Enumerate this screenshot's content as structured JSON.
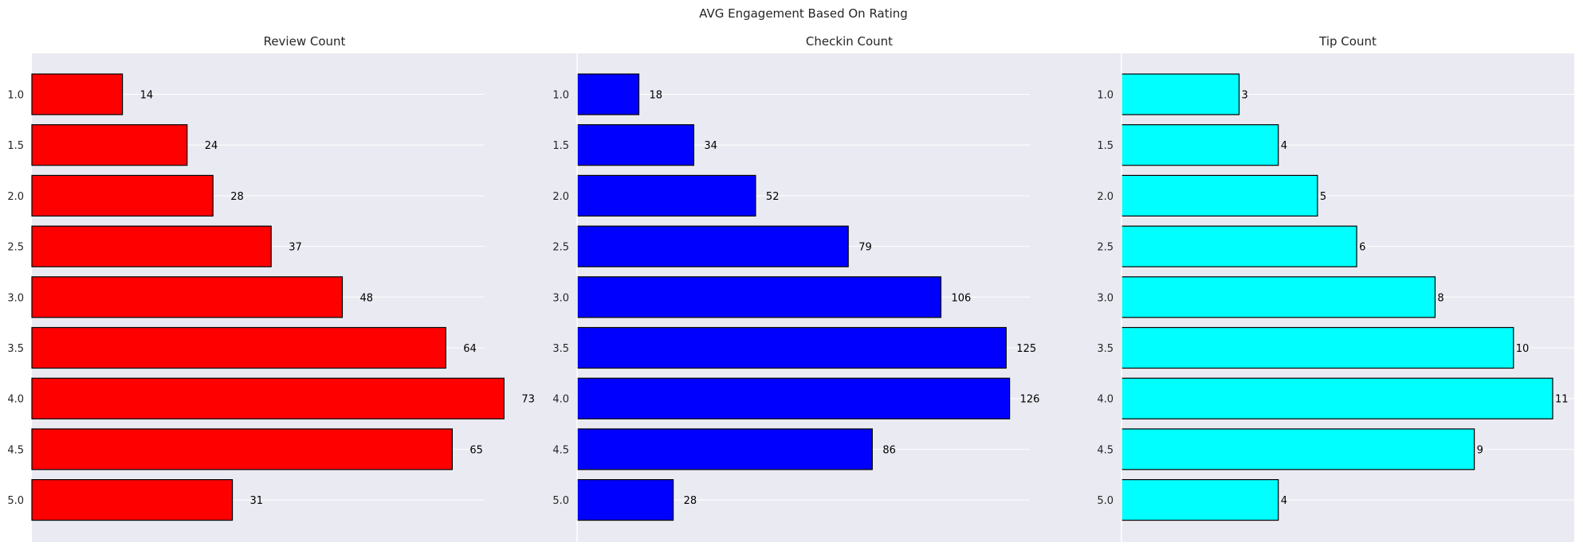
{
  "figure": {
    "suptitle": "AVG Engagement Based On Rating"
  },
  "style": {
    "plot_background": "#eaeaf2",
    "grid_color": "#ffffff",
    "bar_edge": "#000000"
  },
  "chart_data": [
    {
      "type": "bar",
      "orientation": "horizontal",
      "title": "Review Count",
      "categories": [
        "1.0",
        "1.5",
        "2.0",
        "2.5",
        "3.0",
        "3.5",
        "4.0",
        "4.5",
        "5.0"
      ],
      "values": [
        14,
        24,
        28,
        37,
        48,
        64,
        73,
        65,
        31
      ],
      "color": "#ff0000",
      "grid": true
    },
    {
      "type": "bar",
      "orientation": "horizontal",
      "title": "Checkin Count",
      "categories": [
        "1.0",
        "1.5",
        "2.0",
        "2.5",
        "3.0",
        "3.5",
        "4.0",
        "4.5",
        "5.0"
      ],
      "values": [
        18,
        34,
        52,
        79,
        106,
        125,
        126,
        86,
        28
      ],
      "color": "#0000ff",
      "grid": true
    },
    {
      "type": "bar",
      "orientation": "horizontal",
      "title": "Tip Count",
      "categories": [
        "1.0",
        "1.5",
        "2.0",
        "2.5",
        "3.0",
        "3.5",
        "4.0",
        "4.5",
        "5.0"
      ],
      "values": [
        3,
        4,
        5,
        6,
        8,
        10,
        11,
        9,
        4
      ],
      "color": "#00ffff",
      "grid": true
    }
  ]
}
